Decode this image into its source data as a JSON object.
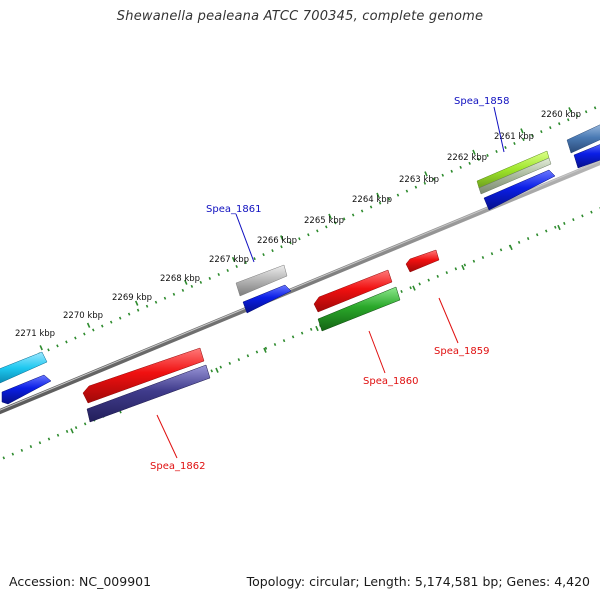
{
  "title": "Shewanella pealeana ATCC 700345, complete genome",
  "footer": {
    "accession": "Accession: NC_009901",
    "summary": "Topology: circular; Length: 5,174,581 bp; Genes: 4,420"
  },
  "tick_labels": [
    "2260 kbp",
    "2261 kbp",
    "2262 kbp",
    "2263 kbp",
    "2264 kbp",
    "2265 kbp",
    "2266 kbp",
    "2267 kbp",
    "2268 kbp",
    "2269 kbp",
    "2270 kbp",
    "2271 kbp"
  ],
  "gene_labels": {
    "spea_1858": "Spea_1858",
    "spea_1859": "Spea_1859",
    "spea_1860": "Spea_1860",
    "spea_1861": "Spea_1861",
    "spea_1862": "Spea_1862"
  },
  "colors": {
    "forward_label": "#1010c0",
    "reverse_label": "#e01010",
    "backbone": "#888888",
    "tick": "#2e8b2e",
    "cds_blue": "#0a1ee6",
    "cds_red": "#f01010",
    "cds_green": "#2aa82a",
    "cds_lime": "#9ee62a",
    "cds_grey": "#b4b4b4",
    "cds_cyan": "#1ec8f0",
    "cds_steel": "#4a7ab4",
    "cds_purple": "#403c8c"
  }
}
